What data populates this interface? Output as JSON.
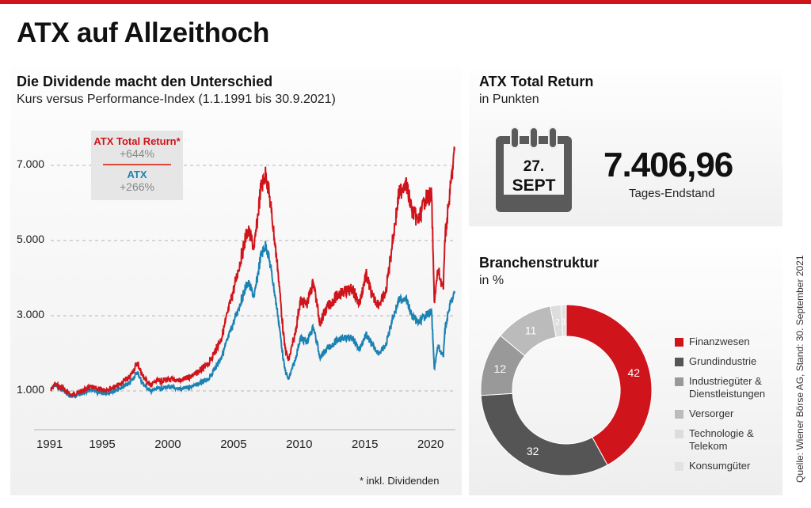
{
  "header": {
    "title": "ATX auf Allzeithoch"
  },
  "line_chart": {
    "title": "Die Dividende macht den Unterschied",
    "subtitle": "Kurs versus Performance-Index (1.1.1991 bis 30.9.2021)",
    "legend": {
      "total_return_label": "ATX Total Return*",
      "total_return_change": "+644%",
      "atx_label": "ATX",
      "atx_change": "+266%"
    },
    "footnote": "* inkl. Dividenden"
  },
  "chart_data": [
    {
      "type": "line",
      "title": "Die Dividende macht den Unterschied",
      "subtitle": "Kurs versus Performance-Index (1.1.1991 bis 30.9.2021)",
      "xlabel": "",
      "ylabel": "",
      "xlim": [
        1991,
        2021.75
      ],
      "ylim": [
        0,
        8000
      ],
      "y_ticks": [
        1000,
        3000,
        5000,
        7000
      ],
      "y_tick_labels": [
        "1.000",
        "3.000",
        "5.000",
        "7.000"
      ],
      "x_ticks": [
        1991,
        1995,
        2000,
        2005,
        2010,
        2015,
        2020
      ],
      "x_tick_labels": [
        "1991",
        "1995",
        "2000",
        "2005",
        "2010",
        "2015",
        "2020"
      ],
      "grid": "horizontal-dashed",
      "legend_position": "top-left",
      "colors": {
        "total_return": "#d0141b",
        "atx": "#1b82b3"
      },
      "series": [
        {
          "name": "ATX Total Return*",
          "change": "+644%",
          "x": [
            1991,
            1991.3,
            1992,
            1992.5,
            1993,
            1994,
            1995,
            1996,
            1997,
            1997.6,
            1998,
            1998.6,
            1999,
            2000,
            2001,
            2002,
            2003,
            2004,
            2005,
            2006,
            2006.5,
            2007,
            2007.4,
            2007.8,
            2008.3,
            2008.8,
            2009.1,
            2009.6,
            2010,
            2010.5,
            2011,
            2011.5,
            2012,
            2013,
            2014,
            2014.5,
            2015,
            2015.5,
            2016,
            2016.5,
            2017,
            2017.5,
            2018,
            2018.5,
            2019,
            2019.5,
            2020,
            2020.2,
            2020.5,
            2020.9,
            2021,
            2021.4,
            2021.75
          ],
          "values": [
            1000,
            1180,
            1050,
            880,
            940,
            1100,
            1020,
            1120,
            1350,
            1750,
            1400,
            1150,
            1250,
            1300,
            1280,
            1450,
            1700,
            2400,
            3800,
            5300,
            4800,
            6400,
            6800,
            5800,
            4200,
            2200,
            1800,
            2500,
            3400,
            3300,
            3900,
            2800,
            3200,
            3600,
            3700,
            3300,
            4100,
            3500,
            3300,
            3600,
            4900,
            6200,
            6600,
            5800,
            5500,
            6100,
            6200,
            3400,
            4200,
            3700,
            5000,
            6300,
            7400
          ]
        },
        {
          "name": "ATX",
          "change": "+266%",
          "x": [
            1991,
            1991.3,
            1992,
            1992.5,
            1993,
            1994,
            1995,
            1996,
            1997,
            1997.6,
            1998,
            1998.6,
            1999,
            2000,
            2001,
            2002,
            2003,
            2004,
            2005,
            2006,
            2006.5,
            2007,
            2007.4,
            2007.8,
            2008.3,
            2008.8,
            2009.1,
            2009.6,
            2010,
            2010.5,
            2011,
            2011.5,
            2012,
            2013,
            2014,
            2014.5,
            2015,
            2015.5,
            2016,
            2016.5,
            2017,
            2017.5,
            2018,
            2018.5,
            2019,
            2019.5,
            2020,
            2020.2,
            2020.5,
            2020.9,
            2021,
            2021.4,
            2021.75
          ],
          "values": [
            1000,
            1150,
            1000,
            840,
            880,
            1020,
            930,
            1010,
            1200,
            1500,
            1200,
            1000,
            1050,
            1100,
            1050,
            1150,
            1300,
            1900,
            2900,
            3900,
            3500,
            4600,
            4900,
            4200,
            3000,
            1600,
            1300,
            1800,
            2400,
            2300,
            2700,
            1900,
            2100,
            2400,
            2400,
            2100,
            2500,
            2200,
            2000,
            2200,
            2900,
            3400,
            3500,
            3000,
            2800,
            3000,
            3100,
            1600,
            2200,
            1900,
            2600,
            3300,
            3600
          ]
        }
      ]
    },
    {
      "type": "pie",
      "subtype": "donut",
      "title": "Branchenstruktur",
      "subtitle": "in %",
      "legend_position": "right",
      "categories": [
        "Finanzwesen",
        "Grundindustrie",
        "Industriegüter & Dienstleistungen",
        "Versorger",
        "Technologie & Telekom",
        "Konsumgüter"
      ],
      "values": [
        42,
        32,
        12,
        11,
        2,
        1
      ],
      "colors": [
        "#d0141b",
        "#555555",
        "#999999",
        "#bbbbbb",
        "#dddddd",
        "#e2e2e2"
      ]
    }
  ],
  "total_return_panel": {
    "title": "ATX Total Return",
    "subtitle": "in Punkten",
    "calendar_day": "27.",
    "calendar_month": "SEPT",
    "value": "7.406,96",
    "caption": "Tages-Endstand"
  },
  "sector_panel": {
    "title": "Branchenstruktur",
    "subtitle": "in %",
    "legend": [
      {
        "label_line1": "Finanzwesen",
        "label_line2": "",
        "color": "#d0141b"
      },
      {
        "label_line1": "Grundindustrie",
        "label_line2": "",
        "color": "#555555"
      },
      {
        "label_line1": "Industriegüter &",
        "label_line2": "Dienstleistungen",
        "color": "#999999"
      },
      {
        "label_line1": "Versorger",
        "label_line2": "",
        "color": "#bbbbbb"
      },
      {
        "label_line1": "Technologie &",
        "label_line2": "Telekom",
        "color": "#dddddd"
      },
      {
        "label_line1": "Konsumgüter",
        "label_line2": "",
        "color": "#e2e2e2"
      }
    ]
  },
  "source": "Quelle: Wiener Börse AG, Stand: 30. September 2021"
}
